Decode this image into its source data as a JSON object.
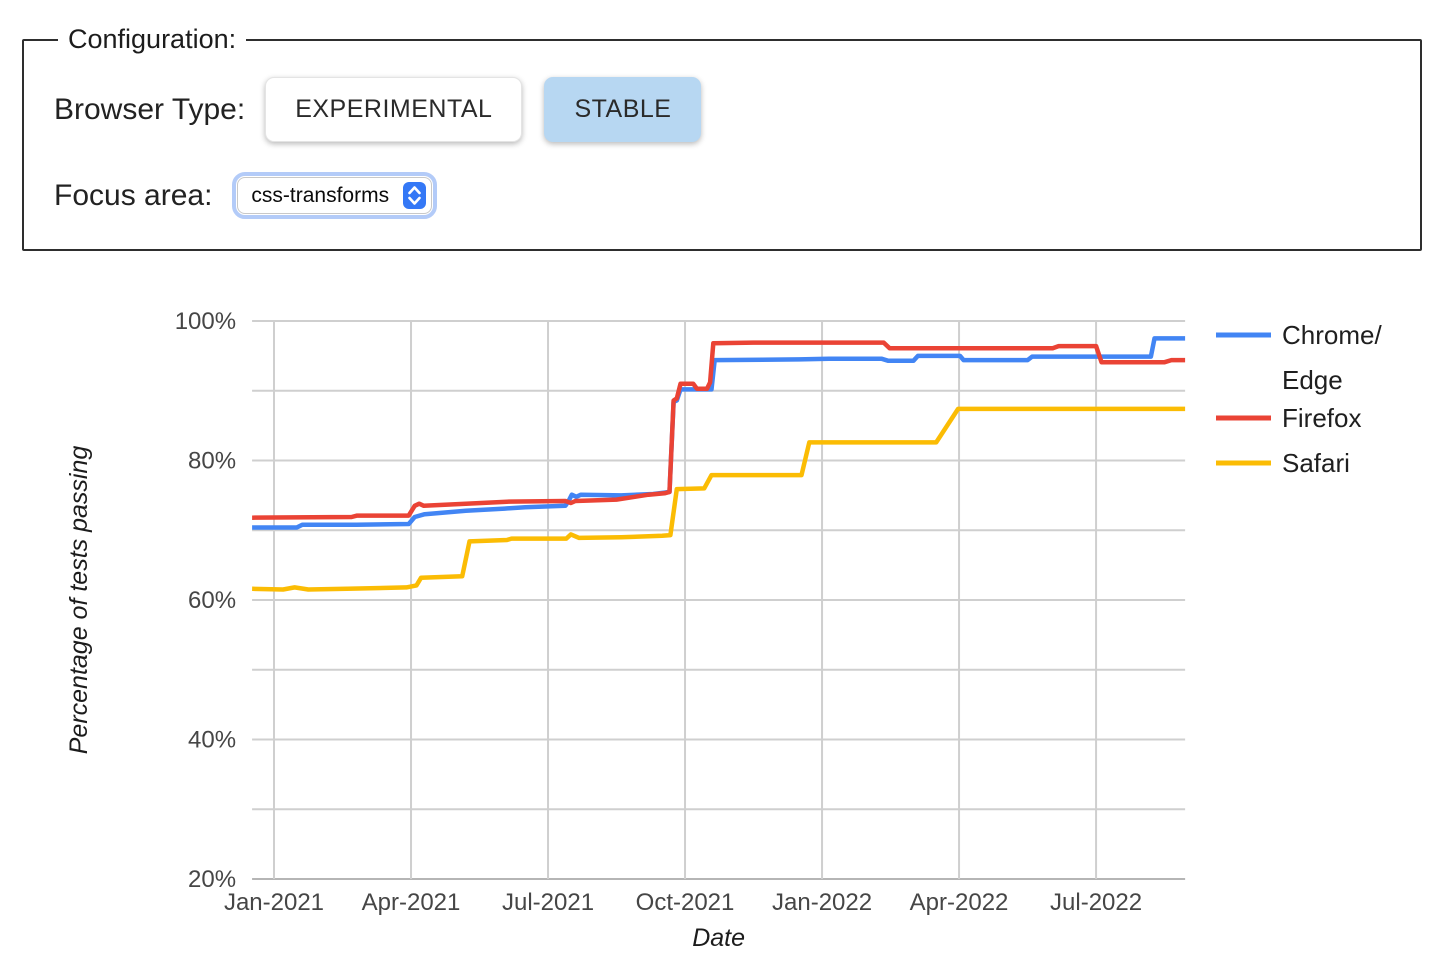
{
  "config_panel": {
    "legend": "Configuration:",
    "browser_type_label": "Browser Type:",
    "experimental_button": "EXPERIMENTAL",
    "stable_button": "STABLE",
    "selected_browser_type": "STABLE",
    "focus_area_label": "Focus area:",
    "focus_area_value": "css-transforms",
    "stepper_icon": "up-down-chevrons"
  },
  "colors": {
    "stable_button_bg": "#b7d7f2",
    "select_focus_ring": "#b3cbf8",
    "select_stepper_bg": "#3478f6",
    "gridline": "#cfcfcf",
    "axis_line": "#b5b5b5",
    "tick_text": "#464646",
    "chrome_edge": "#4285F4",
    "firefox": "#EA4335",
    "safari": "#FBBC04"
  },
  "chart_data": {
    "type": "line",
    "title": "",
    "xlabel": "Date",
    "ylabel": "Percentage of tests passing",
    "x_unit": "months since Jan-2021",
    "xlim": [
      -0.48,
      19.95
    ],
    "ylim": [
      20,
      100
    ],
    "y_grid_step": 10,
    "grid": true,
    "legend_position": "right",
    "y_ticks": [
      20,
      40,
      60,
      80,
      100
    ],
    "x_ticks": [
      {
        "m": 0,
        "label": "Jan-2021"
      },
      {
        "m": 3,
        "label": "Apr-2021"
      },
      {
        "m": 6,
        "label": "Jul-2021"
      },
      {
        "m": 9,
        "label": "Oct-2021"
      },
      {
        "m": 12,
        "label": "Jan-2022"
      },
      {
        "m": 15,
        "label": "Apr-2022"
      },
      {
        "m": 18,
        "label": "Jul-2022"
      }
    ],
    "series": [
      {
        "id": "chrome-edge",
        "name": "Chrome/Edge",
        "legend_lines": [
          "Chrome/",
          "Edge"
        ],
        "color": "#4285F4",
        "points": [
          [
            -0.48,
            70.4
          ],
          [
            0.5,
            70.4
          ],
          [
            0.62,
            70.8
          ],
          [
            1.8,
            70.8
          ],
          [
            2.95,
            70.9
          ],
          [
            3.08,
            71.9
          ],
          [
            3.3,
            72.3
          ],
          [
            4.2,
            72.8
          ],
          [
            5.05,
            73.1
          ],
          [
            5.5,
            73.3
          ],
          [
            6.38,
            73.5
          ],
          [
            6.45,
            74.2
          ],
          [
            6.52,
            75.1
          ],
          [
            6.62,
            74.8
          ],
          [
            6.72,
            75.1
          ],
          [
            7.6,
            75.0
          ],
          [
            8.3,
            75.2
          ],
          [
            8.55,
            75.4
          ],
          [
            8.66,
            75.5
          ],
          [
            8.75,
            88.4
          ],
          [
            8.82,
            88.6
          ],
          [
            8.9,
            90.2
          ],
          [
            9.58,
            90.2
          ],
          [
            9.65,
            94.4
          ],
          [
            11.5,
            94.5
          ],
          [
            12.15,
            94.6
          ],
          [
            13.3,
            94.6
          ],
          [
            13.45,
            94.3
          ],
          [
            14.0,
            94.3
          ],
          [
            14.1,
            95.0
          ],
          [
            15.02,
            95.0
          ],
          [
            15.1,
            94.4
          ],
          [
            16.5,
            94.4
          ],
          [
            16.6,
            94.9
          ],
          [
            19.2,
            94.9
          ],
          [
            19.28,
            97.5
          ],
          [
            19.95,
            97.5
          ]
        ]
      },
      {
        "id": "firefox",
        "name": "Firefox",
        "legend_lines": [
          "Firefox"
        ],
        "color": "#EA4335",
        "points": [
          [
            -0.48,
            71.8
          ],
          [
            1.7,
            71.9
          ],
          [
            1.82,
            72.1
          ],
          [
            2.95,
            72.1
          ],
          [
            3.08,
            73.5
          ],
          [
            3.18,
            73.8
          ],
          [
            3.28,
            73.5
          ],
          [
            4.2,
            73.8
          ],
          [
            5.1,
            74.1
          ],
          [
            6.38,
            74.2
          ],
          [
            6.5,
            73.9
          ],
          [
            6.6,
            74.2
          ],
          [
            7.5,
            74.4
          ],
          [
            7.9,
            74.8
          ],
          [
            8.2,
            75.1
          ],
          [
            8.55,
            75.3
          ],
          [
            8.66,
            75.5
          ],
          [
            8.75,
            88.6
          ],
          [
            8.82,
            88.9
          ],
          [
            8.9,
            91.0
          ],
          [
            9.18,
            91.0
          ],
          [
            9.26,
            90.3
          ],
          [
            9.48,
            90.3
          ],
          [
            9.55,
            91.2
          ],
          [
            9.62,
            96.8
          ],
          [
            10.5,
            96.9
          ],
          [
            13.35,
            96.9
          ],
          [
            13.48,
            96.1
          ],
          [
            17.05,
            96.1
          ],
          [
            17.18,
            96.4
          ],
          [
            18.0,
            96.4
          ],
          [
            18.12,
            94.1
          ],
          [
            19.5,
            94.1
          ],
          [
            19.65,
            94.4
          ],
          [
            19.95,
            94.4
          ]
        ]
      },
      {
        "id": "safari",
        "name": "Safari",
        "legend_lines": [
          "Safari"
        ],
        "color": "#FBBC04",
        "points": [
          [
            -0.48,
            61.6
          ],
          [
            0.2,
            61.5
          ],
          [
            0.45,
            61.8
          ],
          [
            0.75,
            61.5
          ],
          [
            1.6,
            61.6
          ],
          [
            2.9,
            61.8
          ],
          [
            3.12,
            62.1
          ],
          [
            3.22,
            63.2
          ],
          [
            4.12,
            63.4
          ],
          [
            4.28,
            68.4
          ],
          [
            5.1,
            68.6
          ],
          [
            5.2,
            68.8
          ],
          [
            6.4,
            68.8
          ],
          [
            6.5,
            69.4
          ],
          [
            6.68,
            68.9
          ],
          [
            7.6,
            69.0
          ],
          [
            8.5,
            69.2
          ],
          [
            8.68,
            69.3
          ],
          [
            8.82,
            75.9
          ],
          [
            9.42,
            76.0
          ],
          [
            9.58,
            77.9
          ],
          [
            11.55,
            77.9
          ],
          [
            11.72,
            82.6
          ],
          [
            14.5,
            82.6
          ],
          [
            14.98,
            87.4
          ],
          [
            19.95,
            87.4
          ]
        ]
      }
    ]
  }
}
